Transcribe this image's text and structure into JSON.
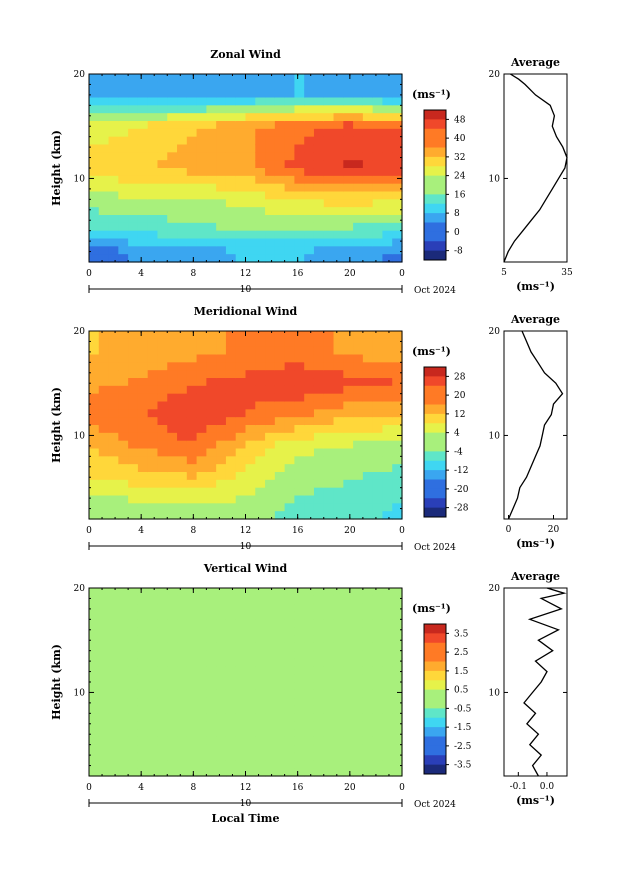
{
  "chart_data": [
    {
      "type": "heatmap",
      "title": "Zonal Wind",
      "ylabel": "Height (km)",
      "ylim": [
        2,
        20
      ],
      "xlim": [
        0,
        24
      ],
      "x_ticks": [
        "0",
        "4",
        "8",
        "12",
        "16",
        "20",
        "0"
      ],
      "y_ticks": [
        "10",
        "20"
      ],
      "date_axis": {
        "day": "10",
        "month_year": "Oct 2024"
      },
      "colorbar": {
        "unit": "(ms⁻¹)",
        "ticks": [
          "48",
          "40",
          "32",
          "24",
          "16",
          "8",
          "0",
          "-8"
        ],
        "min": -12,
        "max": 52
      },
      "grid_days": 10,
      "description_values": {
        "hours": [
          0,
          4,
          8,
          12,
          16,
          20,
          24
        ],
        "rows": [
          {
            "height": 18,
            "values": [
              6,
              5,
              4,
              6,
              8,
              6,
              4
            ]
          },
          {
            "height": 15,
            "values": [
              24,
              28,
              32,
              36,
              40,
              44,
              42
            ]
          },
          {
            "height": 11,
            "values": [
              30,
              32,
              34,
              36,
              44,
              48,
              46
            ]
          },
          {
            "height": 8,
            "values": [
              20,
              22,
              22,
              24,
              28,
              30,
              28
            ]
          },
          {
            "height": 5,
            "values": [
              12,
              14,
              16,
              18,
              18,
              16,
              14
            ]
          },
          {
            "height": 3,
            "values": [
              0,
              4,
              6,
              8,
              8,
              4,
              2
            ]
          }
        ]
      },
      "profile": {
        "title": "Average",
        "xlabel": "(ms⁻¹)",
        "x_ticks": [
          "5",
          "35"
        ],
        "xlim": [
          5,
          35
        ],
        "y_ticks": [
          "10",
          "20"
        ],
        "points": [
          [
            5,
            2
          ],
          [
            7,
            3
          ],
          [
            10,
            4
          ],
          [
            14,
            5
          ],
          [
            18,
            6
          ],
          [
            22,
            7
          ],
          [
            25,
            8
          ],
          [
            28,
            9
          ],
          [
            31,
            10
          ],
          [
            34,
            11
          ],
          [
            35,
            12
          ],
          [
            33,
            13
          ],
          [
            30,
            14
          ],
          [
            28,
            15
          ],
          [
            29,
            16
          ],
          [
            27,
            17
          ],
          [
            20,
            18
          ],
          [
            15,
            19
          ],
          [
            12,
            19.5
          ],
          [
            8,
            20
          ]
        ]
      }
    },
    {
      "type": "heatmap",
      "title": "Meridional Wind",
      "ylabel": "Height (km)",
      "ylim": [
        2,
        20
      ],
      "xlim": [
        0,
        24
      ],
      "x_ticks": [
        "0",
        "4",
        "8",
        "12",
        "16",
        "20",
        "0"
      ],
      "y_ticks": [
        "10",
        "20"
      ],
      "date_axis": {
        "day": "10",
        "month_year": "Oct 2024"
      },
      "colorbar": {
        "unit": "(ms⁻¹)",
        "ticks": [
          "28",
          "20",
          "12",
          "4",
          "-4",
          "-12",
          "-20",
          "-28"
        ],
        "min": -32,
        "max": 32
      },
      "description_values": {
        "hours": [
          0,
          4,
          8,
          12,
          16,
          20,
          24
        ],
        "rows": [
          {
            "height": 18,
            "values": [
              12,
              14,
              16,
              18,
              20,
              16,
              14
            ]
          },
          {
            "height": 15,
            "values": [
              16,
              18,
              22,
              24,
              26,
              24,
              22
            ]
          },
          {
            "height": 12,
            "values": [
              20,
              22,
              26,
              22,
              18,
              14,
              12
            ]
          },
          {
            "height": 9,
            "values": [
              12,
              18,
              22,
              12,
              4,
              2,
              0
            ]
          },
          {
            "height": 6,
            "values": [
              8,
              10,
              12,
              6,
              0,
              -2,
              -4
            ]
          },
          {
            "height": 3,
            "values": [
              -2,
              0,
              2,
              0,
              -4,
              -6,
              -8
            ]
          }
        ]
      },
      "profile": {
        "title": "Average",
        "xlabel": "(ms⁻¹)",
        "x_ticks": [
          "0",
          "20"
        ],
        "xlim": [
          -2,
          26
        ],
        "y_ticks": [
          "10",
          "20"
        ],
        "points": [
          [
            0,
            2
          ],
          [
            2,
            3
          ],
          [
            4,
            4
          ],
          [
            5,
            5
          ],
          [
            8,
            6
          ],
          [
            10,
            7
          ],
          [
            12,
            8
          ],
          [
            14,
            9
          ],
          [
            15,
            10
          ],
          [
            16,
            11
          ],
          [
            19,
            12
          ],
          [
            20,
            13
          ],
          [
            24,
            14
          ],
          [
            21,
            15
          ],
          [
            16,
            16
          ],
          [
            13,
            17
          ],
          [
            10,
            18
          ],
          [
            8,
            19
          ],
          [
            6,
            20
          ]
        ]
      }
    },
    {
      "type": "heatmap",
      "title": "Vertical Wind",
      "ylabel": "Height (km)",
      "xlabel": "Local Time",
      "ylim": [
        2,
        20
      ],
      "xlim": [
        0,
        24
      ],
      "x_ticks": [
        "0",
        "4",
        "8",
        "12",
        "16",
        "20",
        "0"
      ],
      "y_ticks": [
        "10",
        "20"
      ],
      "date_axis": {
        "day": "10",
        "month_year": "Oct 2024"
      },
      "colorbar": {
        "unit": "(ms⁻¹)",
        "ticks": [
          "3.5",
          "2.5",
          "1.5",
          "0.5",
          "-0.5",
          "-1.5",
          "-2.5",
          "-3.5"
        ],
        "min": -4,
        "max": 4
      },
      "description_values": {
        "hours": [
          0,
          4,
          8,
          12,
          16,
          20,
          24
        ],
        "rows": [
          {
            "height": 18,
            "values": [
              0.1,
              0.0,
              0.2,
              0.1,
              0.0,
              0.1,
              0.0
            ]
          },
          {
            "height": 12,
            "values": [
              0.2,
              0.1,
              0.0,
              0.2,
              0.1,
              0.0,
              0.1
            ]
          },
          {
            "height": 6,
            "values": [
              -0.1,
              -0.2,
              -0.1,
              -0.2,
              -0.1,
              -0.2,
              -0.1
            ]
          }
        ]
      },
      "profile": {
        "title": "Average",
        "xlabel": "(ms⁻¹)",
        "x_ticks": [
          "-0.1",
          "0.0"
        ],
        "xlim": [
          -0.15,
          0.07
        ],
        "y_ticks": [
          "10",
          "20"
        ],
        "points": [
          [
            -0.03,
            2
          ],
          [
            -0.05,
            3
          ],
          [
            -0.02,
            4
          ],
          [
            -0.06,
            5
          ],
          [
            -0.03,
            6
          ],
          [
            -0.07,
            7
          ],
          [
            -0.04,
            8
          ],
          [
            -0.08,
            9
          ],
          [
            -0.05,
            10
          ],
          [
            -0.02,
            11
          ],
          [
            0.0,
            12
          ],
          [
            -0.04,
            13
          ],
          [
            0.02,
            14
          ],
          [
            -0.03,
            15
          ],
          [
            0.04,
            16
          ],
          [
            -0.06,
            17
          ],
          [
            0.05,
            18
          ],
          [
            -0.02,
            19
          ],
          [
            0.06,
            19.5
          ],
          [
            0.0,
            20
          ]
        ]
      }
    }
  ]
}
